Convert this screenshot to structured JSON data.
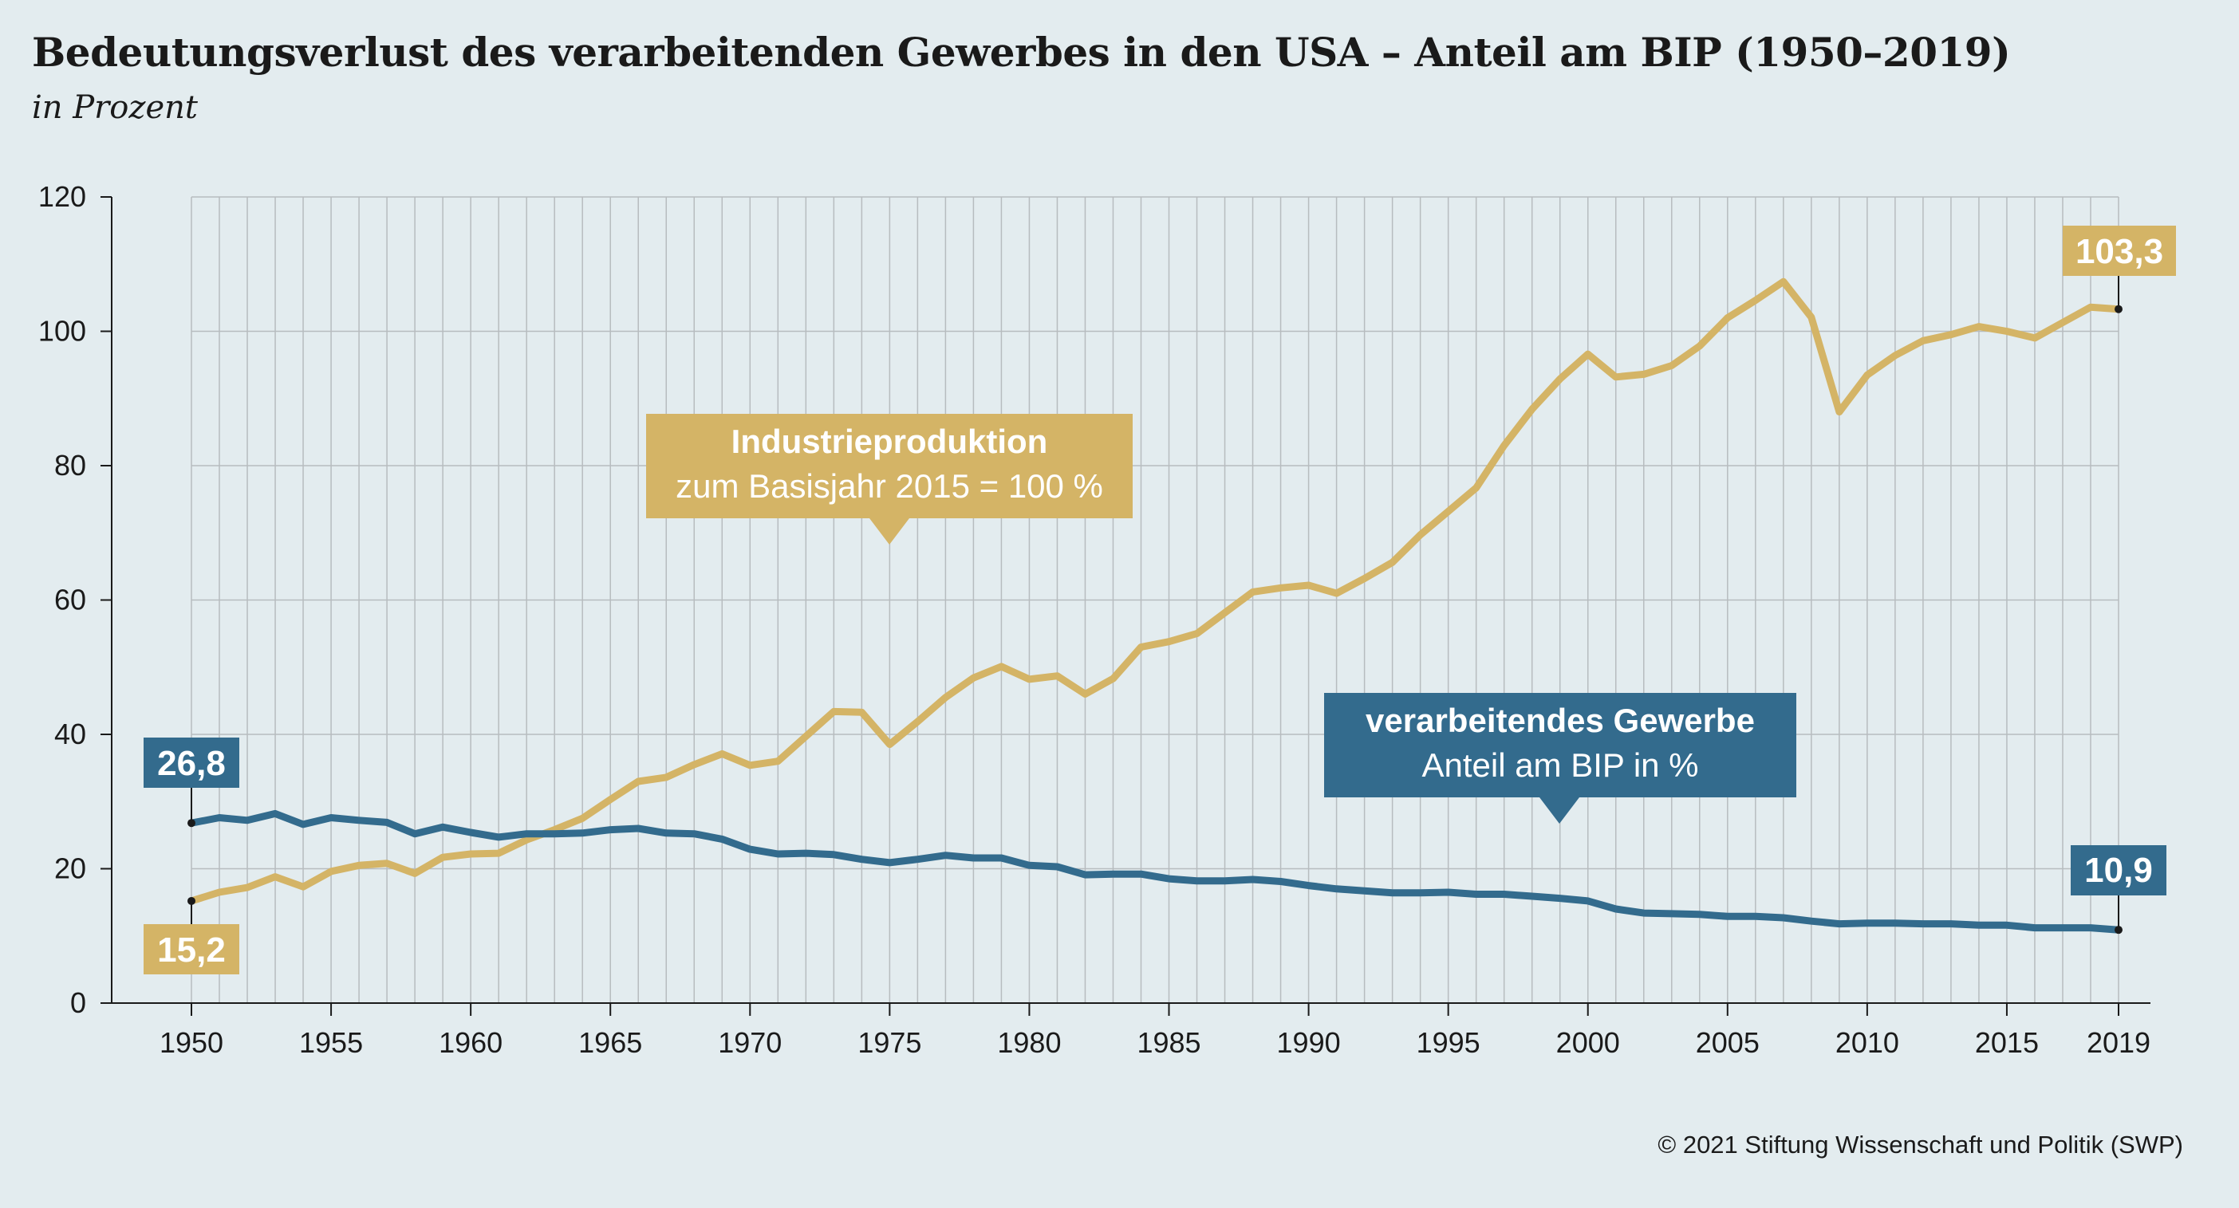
{
  "title": "Bedeutungsverlust des verarbeitenden Gewerbes in den USA – Anteil am BIP (1950–2019)",
  "subtitle": "in Prozent",
  "copyright": "© 2021 Stiftung Wissenschaft und Politik (SWP)",
  "colors": {
    "industrial": "#d4b466",
    "manufacturing": "#336b8d",
    "grid": "#b7bcbf",
    "background": "#e3ecef"
  },
  "chart_data": {
    "type": "line",
    "xlim": [
      1950,
      2019
    ],
    "ylim": [
      0,
      120
    ],
    "x_ticks": [
      "1950",
      "1955",
      "1960",
      "1965",
      "1970",
      "1975",
      "1980",
      "1985",
      "1990",
      "1995",
      "2000",
      "2005",
      "2010",
      "2015",
      "2019"
    ],
    "y_ticks": [
      "0",
      "20",
      "40",
      "60",
      "80",
      "100",
      "120"
    ],
    "grid": "vertical lines every year, horizontal lines every 20",
    "series": [
      {
        "name": "Industrieproduktion",
        "label_sub": "zum Basisjahr 2015 = 100 %",
        "color": "#d4b466",
        "start_label": "15,2",
        "end_label": "103,3",
        "x": [
          1950,
          1951,
          1952,
          1953,
          1954,
          1955,
          1956,
          1957,
          1958,
          1959,
          1960,
          1961,
          1962,
          1963,
          1964,
          1965,
          1966,
          1967,
          1968,
          1969,
          1970,
          1971,
          1972,
          1973,
          1974,
          1975,
          1976,
          1977,
          1978,
          1979,
          1980,
          1981,
          1982,
          1983,
          1984,
          1985,
          1986,
          1987,
          1988,
          1989,
          1990,
          1991,
          1992,
          1993,
          1994,
          1995,
          1996,
          1997,
          1998,
          1999,
          2000,
          2001,
          2002,
          2003,
          2004,
          2005,
          2006,
          2007,
          2008,
          2009,
          2010,
          2011,
          2012,
          2013,
          2014,
          2015,
          2016,
          2017,
          2018,
          2019
        ],
        "values": [
          15.2,
          16.5,
          17.2,
          18.8,
          17.3,
          19.6,
          20.5,
          20.8,
          19.3,
          21.7,
          22.2,
          22.3,
          24.3,
          25.8,
          27.5,
          30.3,
          33.0,
          33.6,
          35.5,
          37.1,
          35.4,
          36.0,
          39.7,
          43.4,
          43.3,
          38.5,
          41.9,
          45.5,
          48.4,
          50.1,
          48.2,
          48.7,
          46.0,
          48.3,
          53.0,
          53.8,
          55.0,
          58.1,
          61.2,
          61.8,
          62.2,
          61.0,
          63.2,
          65.6,
          69.7,
          73.2,
          76.7,
          83.0,
          88.4,
          92.9,
          96.6,
          93.2,
          93.6,
          94.9,
          97.8,
          102.0,
          104.6,
          107.4,
          102.1,
          88.0,
          93.5,
          96.4,
          98.6,
          99.5,
          100.7,
          100.0,
          99.0,
          101.3,
          103.6,
          103.3
        ]
      },
      {
        "name": "verarbeitendes Gewerbe",
        "label_sub": "Anteil am BIP in %",
        "color": "#336b8d",
        "start_label": "26,8",
        "end_label": "10,9",
        "x": [
          1950,
          1951,
          1952,
          1953,
          1954,
          1955,
          1956,
          1957,
          1958,
          1959,
          1960,
          1961,
          1962,
          1963,
          1964,
          1965,
          1966,
          1967,
          1968,
          1969,
          1970,
          1971,
          1972,
          1973,
          1974,
          1975,
          1976,
          1977,
          1978,
          1979,
          1980,
          1981,
          1982,
          1983,
          1984,
          1985,
          1986,
          1987,
          1988,
          1989,
          1990,
          1991,
          1992,
          1993,
          1994,
          1995,
          1996,
          1997,
          1998,
          1999,
          2000,
          2001,
          2002,
          2003,
          2004,
          2005,
          2006,
          2007,
          2008,
          2009,
          2010,
          2011,
          2012,
          2013,
          2014,
          2015,
          2016,
          2017,
          2018,
          2019
        ],
        "values": [
          26.8,
          27.6,
          27.2,
          28.2,
          26.6,
          27.6,
          27.2,
          26.9,
          25.2,
          26.2,
          25.4,
          24.7,
          25.2,
          25.2,
          25.3,
          25.8,
          26.0,
          25.3,
          25.2,
          24.4,
          22.9,
          22.2,
          22.3,
          22.1,
          21.4,
          20.9,
          21.4,
          22.0,
          21.6,
          21.6,
          20.5,
          20.3,
          19.1,
          19.2,
          19.2,
          18.5,
          18.2,
          18.2,
          18.4,
          18.1,
          17.5,
          17.0,
          16.7,
          16.4,
          16.4,
          16.5,
          16.2,
          16.2,
          15.9,
          15.6,
          15.2,
          14.0,
          13.4,
          13.3,
          13.2,
          12.9,
          12.9,
          12.7,
          12.2,
          11.8,
          11.9,
          11.9,
          11.8,
          11.8,
          11.6,
          11.6,
          11.2,
          11.2,
          11.2,
          10.9
        ]
      }
    ]
  }
}
